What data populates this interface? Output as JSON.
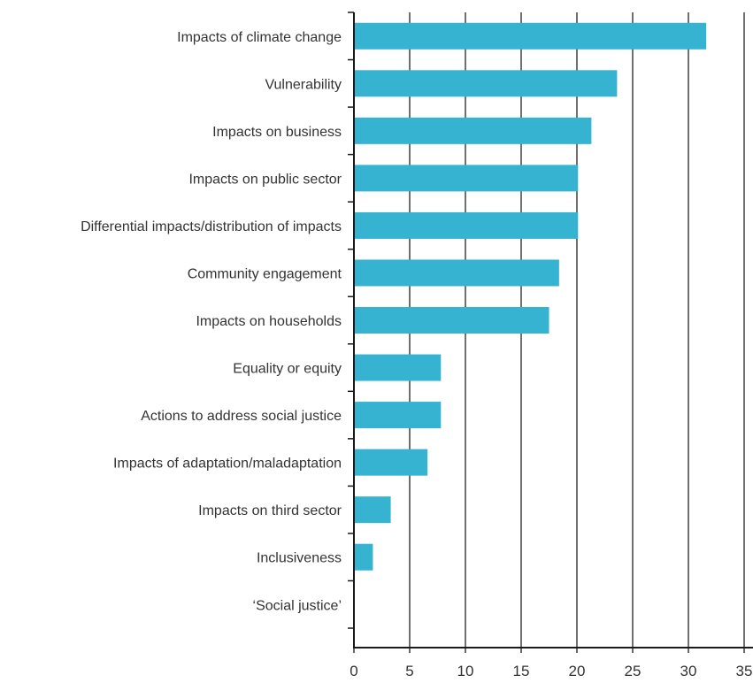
{
  "chart_data": {
    "type": "bar",
    "orientation": "horizontal",
    "title": "",
    "xlabel": "",
    "ylabel": "",
    "categories": [
      "Impacts of climate change",
      "Vulnerability",
      "Impacts on business",
      "Impacts on public sector",
      "Differential impacts/distribution of impacts",
      "Community engagement",
      "Impacts on households",
      "Equality or equity",
      "Actions to address social justice",
      "Impacts of adaptation/maladaptation",
      "Impacts on third sector",
      "Inclusiveness",
      "‘Social justice’"
    ],
    "values": [
      31.6,
      23.6,
      21.3,
      20.1,
      20.1,
      18.4,
      17.5,
      7.8,
      7.8,
      6.6,
      3.3,
      1.7,
      0
    ],
    "xlim": [
      0,
      35
    ],
    "xticks": [
      0,
      5,
      10,
      15,
      20,
      25,
      30,
      35
    ],
    "tick_labels": [
      "0",
      "5",
      "10",
      "15",
      "20",
      "25",
      "30",
      "35"
    ],
    "grid": "vertical",
    "colors": {
      "bar": "#35b3d1",
      "axis": "#1a1a1a",
      "grid": "#222222"
    }
  }
}
